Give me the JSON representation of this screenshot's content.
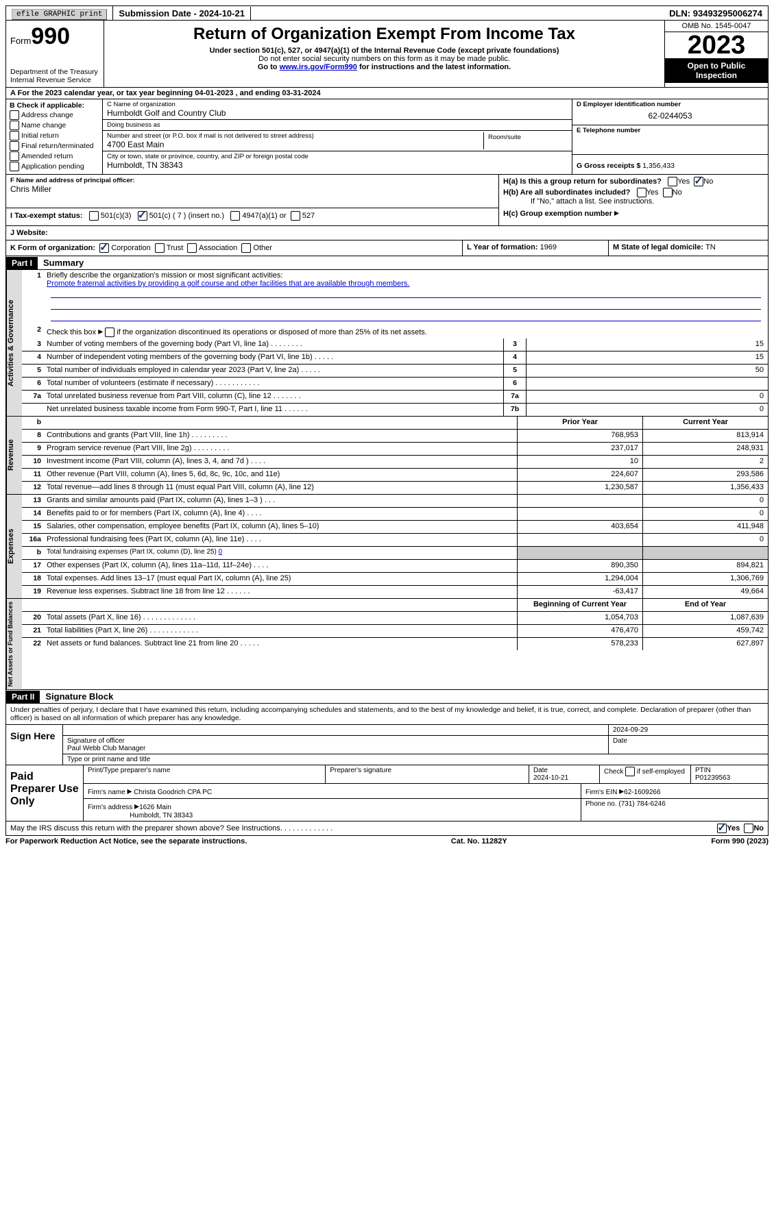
{
  "topbar": {
    "efile": "efile GRAPHIC print",
    "submission_label": "Submission Date - ",
    "submission_date": "2024-10-21",
    "dln_label": "DLN: ",
    "dln": "93493295006274"
  },
  "header": {
    "form_word": "Form",
    "form_num": "990",
    "title": "Return of Organization Exempt From Income Tax",
    "subtitle": "Under section 501(c), 527, or 4947(a)(1) of the Internal Revenue Code (except private foundations)",
    "note1": "Do not enter social security numbers on this form as it may be made public.",
    "note2_pre": "Go to ",
    "note2_link": "www.irs.gov/Form990",
    "note2_post": " for instructions and the latest information.",
    "dept": "Department of the Treasury",
    "irs": "Internal Revenue Service",
    "omb": "OMB No. 1545-0047",
    "year": "2023",
    "open": "Open to Public Inspection"
  },
  "taxyear": {
    "prefix": "A For the 2023 calendar year, or tax year beginning ",
    "begin": "04-01-2023",
    "mid": " , and ending ",
    "end": "03-31-2024"
  },
  "boxB": {
    "label": "B Check if applicable:",
    "items": [
      "Address change",
      "Name change",
      "Initial return",
      "Final return/terminated",
      "Amended return",
      "Application pending"
    ]
  },
  "boxC": {
    "name_label": "C Name of organization",
    "name": "Humboldt Golf and Country Club",
    "dba_label": "Doing business as",
    "dba": "",
    "street_label": "Number and street (or P.O. box if mail is not delivered to street address)",
    "street": "4700 East Main",
    "room_label": "Room/suite",
    "city_label": "City or town, state or province, country, and ZIP or foreign postal code",
    "city": "Humboldt, TN  38343"
  },
  "boxD": {
    "label": "D Employer identification number",
    "value": "62-0244053"
  },
  "boxE": {
    "label": "E Telephone number",
    "value": ""
  },
  "boxG": {
    "label": "G Gross receipts $ ",
    "value": "1,356,433"
  },
  "boxF": {
    "label": "F  Name and address of principal officer:",
    "name": "Chris Miller"
  },
  "boxH": {
    "a_label": "H(a)  Is this a group return for subordinates?",
    "a_no": true,
    "b_label": "H(b)  Are all subordinates included?",
    "b_note": "If \"No,\" attach a list. See instructions.",
    "c_label": "H(c)  Group exemption number "
  },
  "taxexempt": {
    "label": "I  Tax-exempt status:",
    "c3": "501(c)(3)",
    "c_other": "501(c) ( 7 ) (insert no.)",
    "c_other_checked": true,
    "a4947": "4947(a)(1) or",
    "s527": "527"
  },
  "website": {
    "label": "J  Website: "
  },
  "boxK": {
    "label": "K Form of organization:",
    "corp": "Corporation",
    "corp_checked": true,
    "trust": "Trust",
    "assoc": "Association",
    "other": "Other"
  },
  "boxL": {
    "label": "L Year of formation: ",
    "value": "1969"
  },
  "boxM": {
    "label": "M State of legal domicile: ",
    "value": "TN"
  },
  "partI": {
    "hdr": "Part I",
    "title": "Summary",
    "line1_label": "Briefly describe the organization's mission or most significant activities:",
    "line1_val": "Promote fraternal activities by providing a golf course and other facilities that are available through members.",
    "line2": "Check this box       if the organization discontinued its operations or disposed of more than 25% of its net assets.",
    "sections": {
      "ag": "Activities & Governance",
      "rev": "Revenue",
      "exp": "Expenses",
      "net": "Net Assets or Fund Balances"
    },
    "col_prior": "Prior Year",
    "col_current": "Current Year",
    "col_begin": "Beginning of Current Year",
    "col_end": "End of Year",
    "rows_ag": [
      {
        "n": "3",
        "d": "Number of voting members of the governing body (Part VI, line 1a)   .    .    .    .    .    .    .    .",
        "box": "3",
        "v": "15"
      },
      {
        "n": "4",
        "d": "Number of independent voting members of the governing body (Part VI, line 1b)   .    .    .    .    .",
        "box": "4",
        "v": "15"
      },
      {
        "n": "5",
        "d": "Total number of individuals employed in calendar year 2023 (Part V, line 2a)   .    .    .    .    .",
        "box": "5",
        "v": "50"
      },
      {
        "n": "6",
        "d": "Total number of volunteers (estimate if necessary)   .    .    .    .    .    .    .    .    .    .    .",
        "box": "6",
        "v": ""
      },
      {
        "n": "7a",
        "d": "Total unrelated business revenue from Part VIII, column (C), line 12   .    .    .    .    .    .    .",
        "box": "7a",
        "v": "0"
      },
      {
        "n": "",
        "d": "Net unrelated business taxable income from Form 990-T, Part I, line 11   .    .    .    .    .    .",
        "box": "7b",
        "v": "0"
      }
    ],
    "rows_rev": [
      {
        "n": "8",
        "d": "Contributions and grants (Part VIII, line 1h)   .    .    .    .    .    .    .    .    .",
        "p": "768,953",
        "c": "813,914"
      },
      {
        "n": "9",
        "d": "Program service revenue (Part VIII, line 2g)   .    .    .    .    .    .    .    .    .",
        "p": "237,017",
        "c": "248,931"
      },
      {
        "n": "10",
        "d": "Investment income (Part VIII, column (A), lines 3, 4, and 7d )   .    .    .    .",
        "p": "10",
        "c": "2"
      },
      {
        "n": "11",
        "d": "Other revenue (Part VIII, column (A), lines 5, 6d, 8c, 9c, 10c, and 11e)",
        "p": "224,607",
        "c": "293,586"
      },
      {
        "n": "12",
        "d": "Total revenue—add lines 8 through 11 (must equal Part VIII, column (A), line 12)",
        "p": "1,230,587",
        "c": "1,356,433"
      }
    ],
    "rows_exp": [
      {
        "n": "13",
        "d": "Grants and similar amounts paid (Part IX, column (A), lines 1–3 )   .    .    .",
        "p": "",
        "c": "0"
      },
      {
        "n": "14",
        "d": "Benefits paid to or for members (Part IX, column (A), line 4)   .    .    .    .",
        "p": "",
        "c": "0"
      },
      {
        "n": "15",
        "d": "Salaries, other compensation, employee benefits (Part IX, column (A), lines 5–10)",
        "p": "403,654",
        "c": "411,948"
      },
      {
        "n": "16a",
        "d": "Professional fundraising fees (Part IX, column (A), line 11e)   .    .    .    .",
        "p": "",
        "c": "0"
      },
      {
        "n": "b",
        "d": "Total fundraising expenses (Part IX, column (D), line 25) ",
        "extra": "0",
        "shaded": true
      },
      {
        "n": "17",
        "d": "Other expenses (Part IX, column (A), lines 11a–11d, 11f–24e)   .    .    .    .",
        "p": "890,350",
        "c": "894,821"
      },
      {
        "n": "18",
        "d": "Total expenses. Add lines 13–17 (must equal Part IX, column (A), line 25)",
        "p": "1,294,004",
        "c": "1,306,769"
      },
      {
        "n": "19",
        "d": "Revenue less expenses. Subtract line 18 from line 12   .    .    .    .    .    .",
        "p": "-63,417",
        "c": "49,664"
      }
    ],
    "rows_net": [
      {
        "n": "20",
        "d": "Total assets (Part X, line 16)   .    .    .    .    .    .    .    .    .    .    .    .    .",
        "p": "1,054,703",
        "c": "1,087,639"
      },
      {
        "n": "21",
        "d": "Total liabilities (Part X, line 26)   .    .    .    .    .    .    .    .    .    .    .    .",
        "p": "476,470",
        "c": "459,742"
      },
      {
        "n": "22",
        "d": "Net assets or fund balances. Subtract line 21 from line 20   .    .    .    .    .",
        "p": "578,233",
        "c": "627,897"
      }
    ],
    "b_label": "b"
  },
  "partII": {
    "hdr": "Part II",
    "title": "Signature Block",
    "penalties": "Under penalties of perjury, I declare that I have examined this return, including accompanying schedules and statements, and to the best of my knowledge and belief, it is true, correct, and complete. Declaration of preparer (other than officer) is based on all information of which preparer has any knowledge.",
    "sign_here": "Sign Here",
    "sig_date": "2024-09-29",
    "sig_officer_label": "Signature of officer",
    "sig_name": "Paul Webb Club Manager",
    "sig_type_label": "Type or print name and title",
    "date_label": "Date",
    "paid": "Paid Preparer Use Only",
    "prep_name_label": "Print/Type preparer's name",
    "prep_sig_label": "Preparer's signature",
    "prep_date_label": "Date",
    "prep_date": "2024-10-21",
    "self_emp": "Check        if self-employed",
    "ptin_label": "PTIN",
    "ptin": "P01239563",
    "firm_name_label": "Firm's name   ",
    "firm_name": "Christa Goodrich CPA PC",
    "firm_ein_label": "Firm's EIN  ",
    "firm_ein": "62-1609266",
    "firm_addr_label": "Firm's address ",
    "firm_addr1": "1626 Main",
    "firm_addr2": "Humboldt, TN  38343",
    "phone_label": "Phone no. ",
    "phone": "(731) 784-6246"
  },
  "discuss": {
    "text": "May the IRS discuss this return with the preparer shown above? See Instructions.    .    .    .    .    .    .    .    .    .    .    .    .",
    "yes_checked": true
  },
  "footer": {
    "left": "For Paperwork Reduction Act Notice, see the separate instructions.",
    "mid": "Cat. No. 11282Y",
    "right": "Form 990 (2023)"
  }
}
